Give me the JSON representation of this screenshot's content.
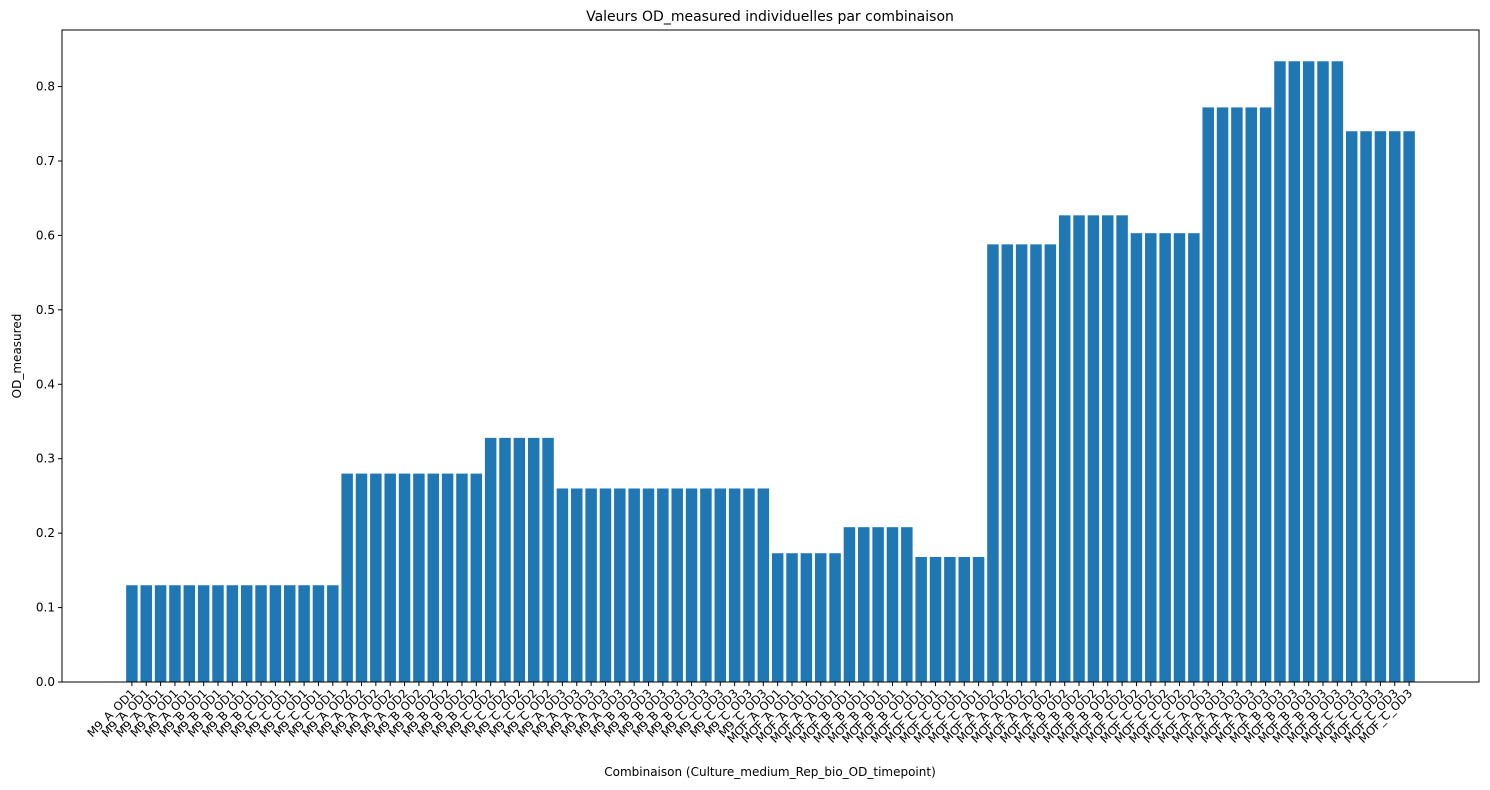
{
  "chart_data": {
    "type": "bar",
    "title": "Valeurs OD_measured individuelles par combinaison",
    "xlabel": "Combinaison (Culture_medium_Rep_bio_OD_timepoint)",
    "ylabel": "OD_measured",
    "color": "#1f77b4",
    "categories": [
      "M9_A_OD1",
      "M9_A_OD1",
      "M9_A_OD1",
      "M9_A_OD1",
      "M9_A_OD1",
      "M9_B_OD1",
      "M9_B_OD1",
      "M9_B_OD1",
      "M9_B_OD1",
      "M9_B_OD1",
      "M9_C_OD1",
      "M9_C_OD1",
      "M9_C_OD1",
      "M9_C_OD1",
      "M9_C_OD1",
      "M9_A_OD2",
      "M9_A_OD2",
      "M9_A_OD2",
      "M9_A_OD2",
      "M9_A_OD2",
      "M9_B_OD2",
      "M9_B_OD2",
      "M9_B_OD2",
      "M9_B_OD2",
      "M9_B_OD2",
      "M9_C_OD2",
      "M9_C_OD2",
      "M9_C_OD2",
      "M9_C_OD2",
      "M9_C_OD2",
      "M9_A_OD3",
      "M9_A_OD3",
      "M9_A_OD3",
      "M9_A_OD3",
      "M9_A_OD3",
      "M9_B_OD3",
      "M9_B_OD3",
      "M9_B_OD3",
      "M9_B_OD3",
      "M9_B_OD3",
      "M9_C_OD3",
      "M9_C_OD3",
      "M9_C_OD3",
      "M9_C_OD3",
      "M9_C_OD3",
      "MOF_A_OD1",
      "MOF_A_OD1",
      "MOF_A_OD1",
      "MOF_A_OD1",
      "MOF_A_OD1",
      "MOF_B_OD1",
      "MOF_B_OD1",
      "MOF_B_OD1",
      "MOF_B_OD1",
      "MOF_B_OD1",
      "MOF_C_OD1",
      "MOF_C_OD1",
      "MOF_C_OD1",
      "MOF_C_OD1",
      "MOF_C_OD1",
      "MOF_A_OD2",
      "MOF_A_OD2",
      "MOF_A_OD2",
      "MOF_A_OD2",
      "MOF_A_OD2",
      "MOF_B_OD2",
      "MOF_B_OD2",
      "MOF_B_OD2",
      "MOF_B_OD2",
      "MOF_B_OD2",
      "MOF_C_OD2",
      "MOF_C_OD2",
      "MOF_C_OD2",
      "MOF_C_OD2",
      "MOF_C_OD2",
      "MOF_A_OD3",
      "MOF_A_OD3",
      "MOF_A_OD3",
      "MOF_A_OD3",
      "MOF_A_OD3",
      "MOF_B_OD3",
      "MOF_B_OD3",
      "MOF_B_OD3",
      "MOF_B_OD3",
      "MOF_B_OD3",
      "MOF_C_OD3",
      "MOF_C_OD3",
      "MOF_C_OD3",
      "MOF_C_OD3",
      "MOF_C_OD3"
    ],
    "values": [
      0.13,
      0.13,
      0.13,
      0.13,
      0.13,
      0.13,
      0.13,
      0.13,
      0.13,
      0.13,
      0.13,
      0.13,
      0.13,
      0.13,
      0.13,
      0.28,
      0.28,
      0.28,
      0.28,
      0.28,
      0.28,
      0.28,
      0.28,
      0.28,
      0.28,
      0.328,
      0.328,
      0.328,
      0.328,
      0.328,
      0.26,
      0.26,
      0.26,
      0.26,
      0.26,
      0.26,
      0.26,
      0.26,
      0.26,
      0.26,
      0.26,
      0.26,
      0.26,
      0.26,
      0.26,
      0.173,
      0.173,
      0.173,
      0.173,
      0.173,
      0.208,
      0.208,
      0.208,
      0.208,
      0.208,
      0.168,
      0.168,
      0.168,
      0.168,
      0.168,
      0.588,
      0.588,
      0.588,
      0.588,
      0.588,
      0.627,
      0.627,
      0.627,
      0.627,
      0.627,
      0.603,
      0.603,
      0.603,
      0.603,
      0.603,
      0.772,
      0.772,
      0.772,
      0.772,
      0.772,
      0.834,
      0.834,
      0.834,
      0.834,
      0.834,
      0.74,
      0.74,
      0.74,
      0.74,
      0.74
    ],
    "ylim": [
      0,
      0.876
    ],
    "yticks": [
      {
        "value": 0,
        "label": "0.0"
      },
      0.1,
      0.2,
      0.3,
      0.4,
      0.5,
      0.6,
      0.7,
      0.8
    ],
    "grid": false
  }
}
